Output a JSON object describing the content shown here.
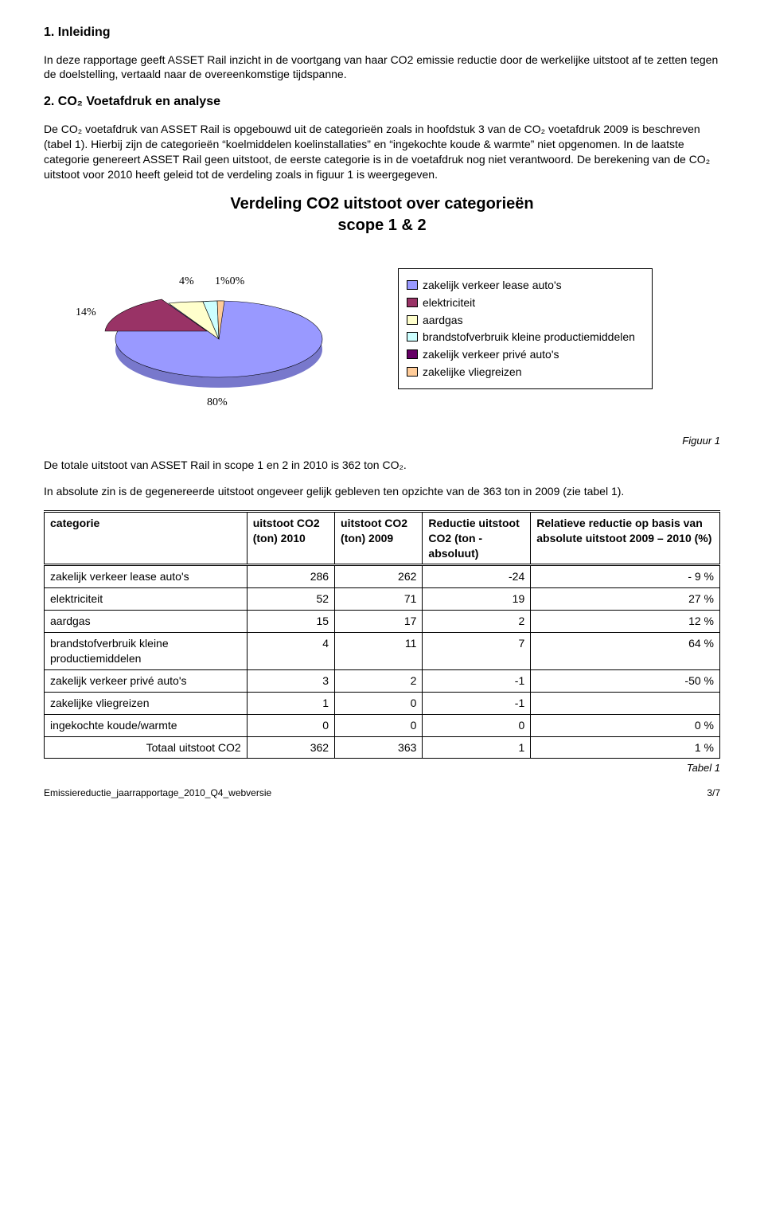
{
  "section1": {
    "title": "1. Inleiding",
    "para": "In deze rapportage geeft ASSET Rail inzicht in de voortgang van haar CO2 emissie reductie door de werkelijke uitstoot af te zetten tegen de doelstelling, vertaald naar de overeenkomstige tijdspanne."
  },
  "section2": {
    "title": "2. CO₂ Voetafdruk en analyse",
    "para": "De CO₂ voetafdruk van ASSET Rail is opgebouwd uit de categorieën zoals in hoofdstuk 3 van de CO₂ voetafdruk 2009 is beschreven (tabel 1). Hierbij zijn de categorieën “koelmiddelen koelinstallaties” en “ingekochte koude & warmte” niet opgenomen. In de laatste categorie genereert ASSET Rail geen uitstoot, de eerste categorie is in de voetafdruk nog niet verantwoord. De berekening van de CO₂ uitstoot voor 2010 heeft geleid tot de verdeling zoals in figuur 1 is weergegeven."
  },
  "chart": {
    "title_line1": "Verdeling CO2 uitstoot over categorieën",
    "title_line2": "scope 1 & 2",
    "type": "pie",
    "labels": [
      "14%",
      "4%",
      "1%",
      "0%",
      "80%"
    ],
    "tiny_overlap": "1%0%",
    "values": [
      14,
      4,
      1,
      0,
      80
    ],
    "slice_colors": [
      "#993366",
      "#ffffcc",
      "#ccffff",
      "#ffcc99",
      "#9999ff"
    ],
    "background_color": "#ffffff",
    "label_fontsize": 14,
    "legend": {
      "items": [
        {
          "label": "zakelijk verkeer lease auto's",
          "color": "#9999ff"
        },
        {
          "label": "elektriciteit",
          "color": "#993366"
        },
        {
          "label": "aardgas",
          "color": "#ffffcc"
        },
        {
          "label": "brandstofverbruik kleine productiemiddelen",
          "color": "#ccffff"
        },
        {
          "label": "zakelijk verkeer privé auto's",
          "color": "#660066"
        },
        {
          "label": "zakelijke vliegreizen",
          "color": "#ffcc99"
        }
      ]
    }
  },
  "figure_label": "Figuur 1",
  "para_after_chart1": "De totale uitstoot van ASSET Rail in scope 1 en 2 in 2010 is 362 ton CO₂.",
  "para_after_chart2": "In absolute zin is de gegenereerde uitstoot ongeveer gelijk gebleven ten opzichte van de 363 ton in 2009 (zie tabel 1).",
  "table": {
    "columns": [
      "categorie",
      "uitstoot CO2 (ton) 2010",
      "uitstoot CO2 (ton) 2009",
      "Reductie uitstoot CO2 (ton - absoluut)",
      "Relatieve reductie op basis van absolute uitstoot 2009 – 2010 (%)"
    ],
    "col_widths": [
      "30%",
      "13%",
      "13%",
      "16%",
      "28%"
    ],
    "rows": [
      {
        "category": "zakelijk verkeer lease auto's",
        "v2010": "286",
        "v2009": "262",
        "red": "-24",
        "rel": "- 9 %"
      },
      {
        "category": "elektriciteit",
        "v2010": "52",
        "v2009": "71",
        "red": "19",
        "rel": "27 %"
      },
      {
        "category": "aardgas",
        "v2010": "15",
        "v2009": "17",
        "red": "2",
        "rel": "12 %"
      },
      {
        "category": "brandstofverbruik kleine productiemiddelen",
        "v2010": "4",
        "v2009": "11",
        "red": "7",
        "rel": "64 %"
      },
      {
        "category": "zakelijk verkeer privé auto's",
        "v2010": "3",
        "v2009": "2",
        "red": "-1",
        "rel": "-50 %"
      },
      {
        "category": "zakelijke vliegreizen",
        "v2010": "1",
        "v2009": "0",
        "red": "-1",
        "rel": ""
      },
      {
        "category": "ingekochte koude/warmte",
        "v2010": "0",
        "v2009": "0",
        "red": "0",
        "rel": "0 %"
      }
    ],
    "total": {
      "label": "Totaal uitstoot CO2",
      "v2010": "362",
      "v2009": "363",
      "red": "1",
      "rel": "1 %"
    }
  },
  "table_label": "Tabel 1",
  "footer_left": "Emissiereductie_jaarrapportage_2010_Q4_webversie",
  "footer_right": "3/7"
}
